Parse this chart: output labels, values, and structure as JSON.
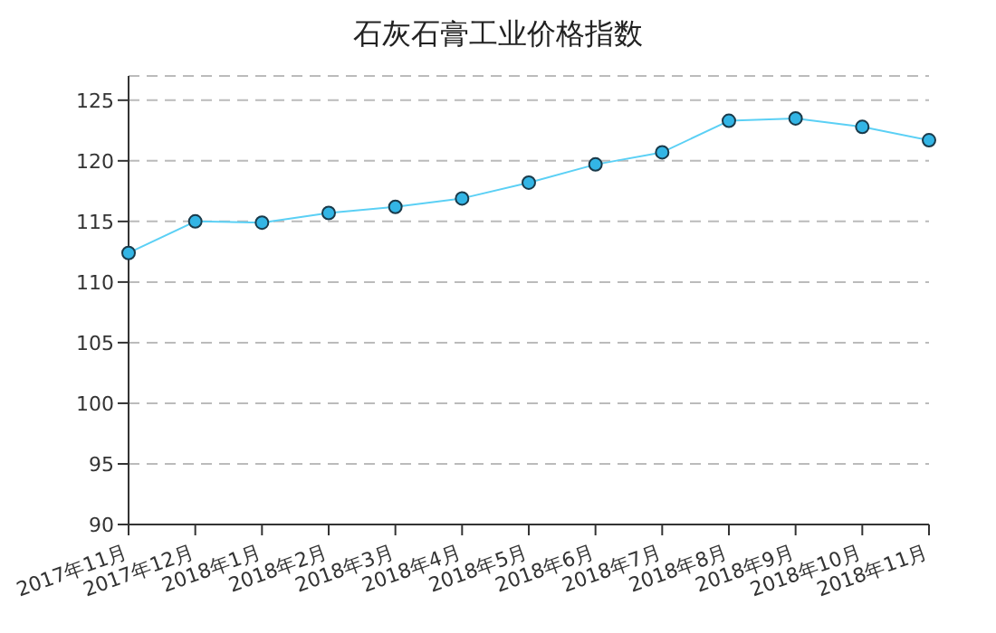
{
  "chart_data": {
    "type": "line",
    "title": "石灰石膏工业价格指数",
    "categories": [
      "2017年11月",
      "2017年12月",
      "2018年1月",
      "2018年2月",
      "2018年3月",
      "2018年4月",
      "2018年5月",
      "2018年6月",
      "2018年7月",
      "2018年8月",
      "2018年9月",
      "2018年10月",
      "2018年11月"
    ],
    "series": [
      {
        "color": "#5bd0f5",
        "values": [
          112.4,
          115.0,
          114.9,
          115.7,
          116.2,
          116.9,
          118.2,
          119.7,
          120.7,
          123.3,
          123.5,
          122.8,
          121.7
        ]
      }
    ],
    "ylim": [
      90,
      127
    ],
    "yticks": [
      90,
      95,
      100,
      105,
      110,
      115,
      120,
      125
    ],
    "grid": "y",
    "marker": "circle",
    "line_style": "solid"
  }
}
